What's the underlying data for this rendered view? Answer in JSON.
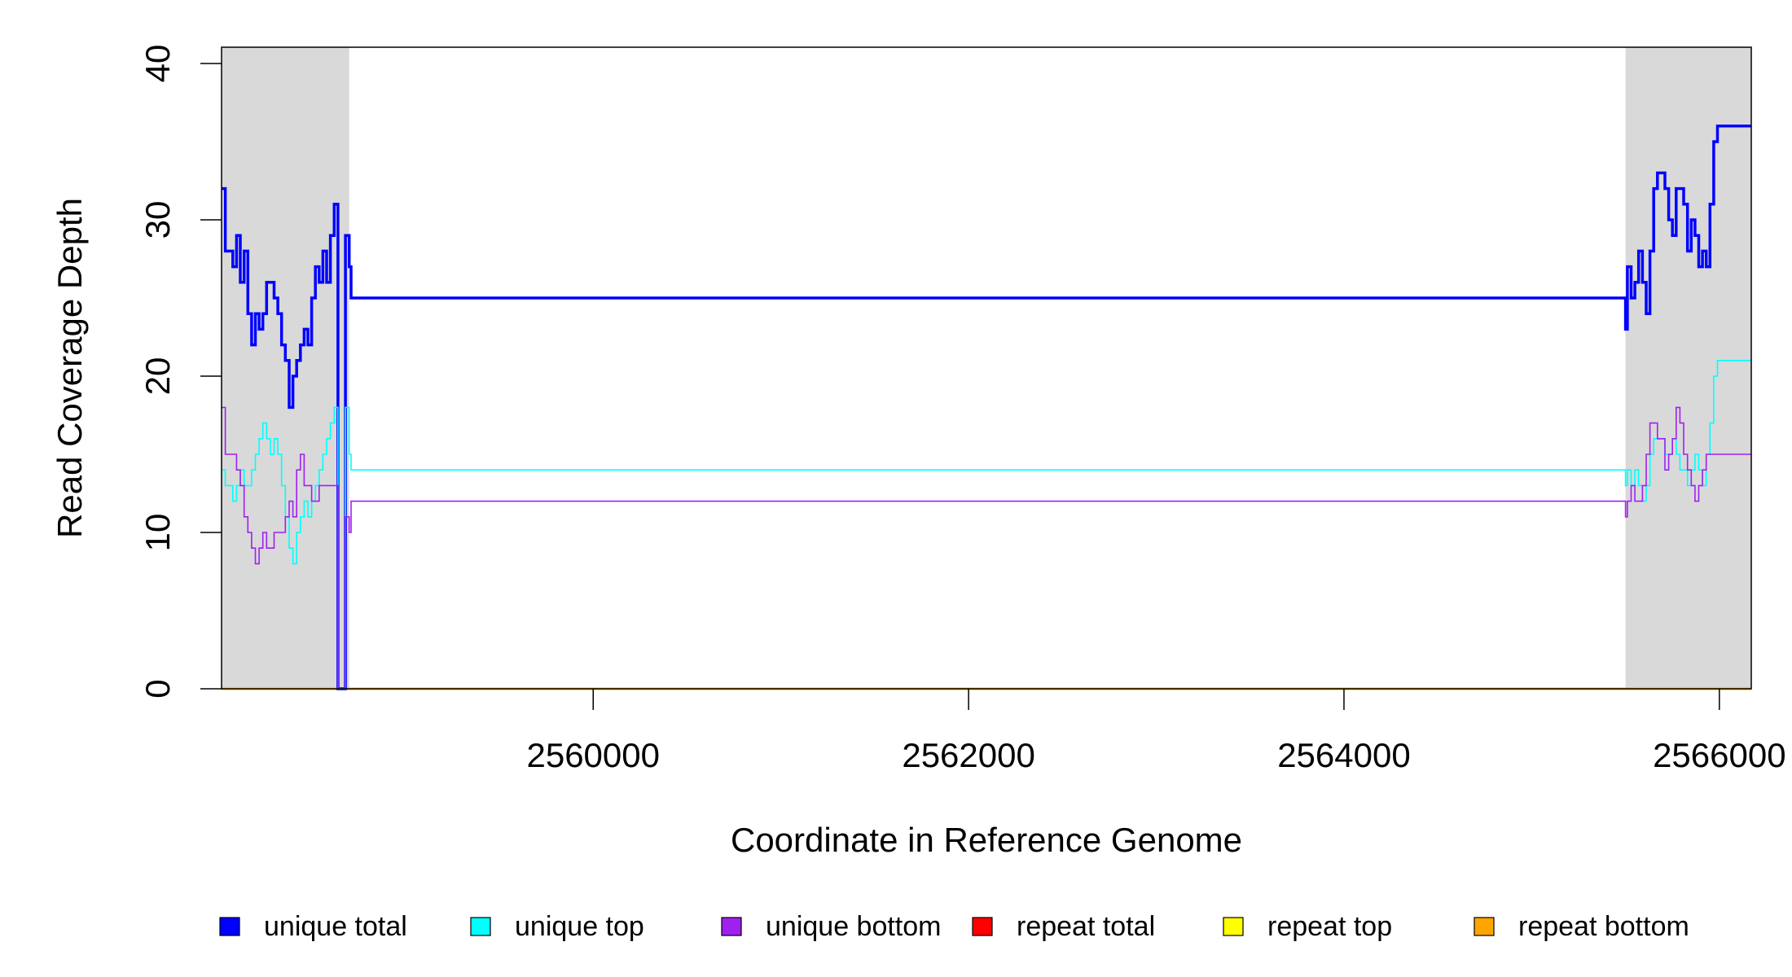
{
  "chart_data": {
    "type": "line",
    "xlabel": "Coordinate in Reference Genome",
    "ylabel": "Read Coverage Depth",
    "xlim": [
      2558020,
      2566170
    ],
    "ylim": [
      0,
      40
    ],
    "x_ticks": [
      2560000,
      2562000,
      2564000,
      2566000
    ],
    "x_tick_labels": [
      "2560000",
      "2562000",
      "2564000",
      "2566000"
    ],
    "y_ticks": [
      0,
      10,
      20,
      30,
      40
    ],
    "y_tick_labels": [
      "0",
      "10",
      "20",
      "30",
      "40"
    ],
    "grid": false,
    "legend_position": "bottom",
    "shaded_regions": [
      [
        2558020,
        2558700
      ],
      [
        2565500,
        2566170
      ]
    ],
    "series": [
      {
        "name": "unique total",
        "color": "#0000ff",
        "x": [
          2558020,
          2558040,
          2558060,
          2558080,
          2558100,
          2558120,
          2558140,
          2558160,
          2558180,
          2558200,
          2558220,
          2558240,
          2558260,
          2558280,
          2558300,
          2558320,
          2558340,
          2558360,
          2558380,
          2558400,
          2558420,
          2558440,
          2558460,
          2558480,
          2558500,
          2558520,
          2558540,
          2558560,
          2558580,
          2558600,
          2558620,
          2558640,
          2558660,
          2558680,
          2558700,
          2558710,
          2565500,
          2565510,
          2565530,
          2565550,
          2565570,
          2565590,
          2565610,
          2565630,
          2565650,
          2565670,
          2565690,
          2565710,
          2565730,
          2565750,
          2565770,
          2565790,
          2565810,
          2565830,
          2565850,
          2565870,
          2565890,
          2565910,
          2565930,
          2565950,
          2565970,
          2565990,
          2566010,
          2566030,
          2566050,
          2566070,
          2566090,
          2566110,
          2566130,
          2566150,
          2566170
        ],
        "y": [
          32,
          28,
          28,
          27,
          29,
          26,
          28,
          24,
          22,
          24,
          23,
          24,
          26,
          26,
          25,
          24,
          22,
          21,
          18,
          20,
          21,
          22,
          23,
          22,
          25,
          27,
          26,
          28,
          26,
          29,
          31,
          0,
          0,
          29,
          27,
          25,
          23,
          27,
          25,
          26,
          28,
          26,
          24,
          28,
          32,
          33,
          33,
          32,
          30,
          29,
          32,
          32,
          31,
          28,
          30,
          29,
          27,
          28,
          27,
          31,
          35,
          36,
          36,
          36,
          36,
          36,
          36,
          36,
          36,
          36,
          36
        ]
      },
      {
        "name": "unique top",
        "color": "#00ffff",
        "x": [
          2558020,
          2558040,
          2558060,
          2558080,
          2558100,
          2558120,
          2558140,
          2558160,
          2558180,
          2558200,
          2558220,
          2558240,
          2558260,
          2558280,
          2558300,
          2558320,
          2558340,
          2558360,
          2558380,
          2558400,
          2558420,
          2558440,
          2558460,
          2558480,
          2558500,
          2558520,
          2558540,
          2558560,
          2558580,
          2558600,
          2558620,
          2558640,
          2558660,
          2558680,
          2558700,
          2558710,
          2565500,
          2565510,
          2565530,
          2565550,
          2565570,
          2565590,
          2565610,
          2565630,
          2565650,
          2565670,
          2565690,
          2565710,
          2565730,
          2565750,
          2565770,
          2565790,
          2565810,
          2565830,
          2565850,
          2565870,
          2565890,
          2565910,
          2565930,
          2565950,
          2565970,
          2565990,
          2566010,
          2566030,
          2566050,
          2566070,
          2566090,
          2566110,
          2566130,
          2566150,
          2566170
        ],
        "y": [
          14,
          13,
          13,
          12,
          13,
          14,
          13,
          13,
          14,
          15,
          16,
          17,
          16,
          15,
          16,
          15,
          13,
          11,
          9,
          8,
          10,
          11,
          12,
          11,
          12,
          13,
          14,
          15,
          16,
          17,
          18,
          0,
          0,
          18,
          15,
          14,
          13,
          14,
          13,
          14,
          13,
          12,
          13,
          15,
          16,
          16,
          16,
          15,
          15,
          16,
          15,
          14,
          14,
          13,
          14,
          15,
          14,
          13,
          15,
          17,
          20,
          21,
          21,
          21,
          21,
          21,
          21,
          21,
          21,
          21,
          21
        ]
      },
      {
        "name": "unique bottom",
        "color": "#a020f0",
        "x": [
          2558020,
          2558040,
          2558060,
          2558080,
          2558100,
          2558120,
          2558140,
          2558160,
          2558180,
          2558200,
          2558220,
          2558240,
          2558260,
          2558280,
          2558300,
          2558320,
          2558340,
          2558360,
          2558380,
          2558400,
          2558420,
          2558440,
          2558460,
          2558480,
          2558500,
          2558520,
          2558540,
          2558560,
          2558580,
          2558600,
          2558620,
          2558640,
          2558660,
          2558680,
          2558700,
          2558710,
          2565500,
          2565510,
          2565530,
          2565550,
          2565570,
          2565590,
          2565610,
          2565630,
          2565650,
          2565670,
          2565690,
          2565710,
          2565730,
          2565750,
          2565770,
          2565790,
          2565810,
          2565830,
          2565850,
          2565870,
          2565890,
          2565910,
          2565930,
          2565950,
          2565970,
          2565990,
          2566010,
          2566030,
          2566050,
          2566070,
          2566090,
          2566110,
          2566130,
          2566150,
          2566170
        ],
        "y": [
          18,
          15,
          15,
          15,
          14,
          13,
          11,
          10,
          9,
          8,
          9,
          10,
          9,
          9,
          10,
          10,
          10,
          11,
          12,
          11,
          14,
          15,
          13,
          13,
          12,
          12,
          13,
          13,
          13,
          13,
          13,
          0,
          0,
          11,
          10,
          12,
          11,
          12,
          13,
          12,
          12,
          13,
          15,
          17,
          17,
          16,
          16,
          14,
          15,
          16,
          18,
          17,
          15,
          14,
          13,
          12,
          13,
          14,
          15,
          15,
          15,
          15,
          15,
          15,
          15,
          15,
          15,
          15,
          15,
          15,
          15
        ]
      },
      {
        "name": "repeat total",
        "color": "#ff0000",
        "x": [
          2558020,
          2566170
        ],
        "y": [
          0,
          0
        ]
      },
      {
        "name": "repeat top",
        "color": "#ffff00",
        "x": [
          2558020,
          2566170
        ],
        "y": [
          0,
          0
        ]
      },
      {
        "name": "repeat bottom",
        "color": "#ffa500",
        "x": [
          2558020,
          2566170
        ],
        "y": [
          0,
          0
        ]
      }
    ]
  }
}
